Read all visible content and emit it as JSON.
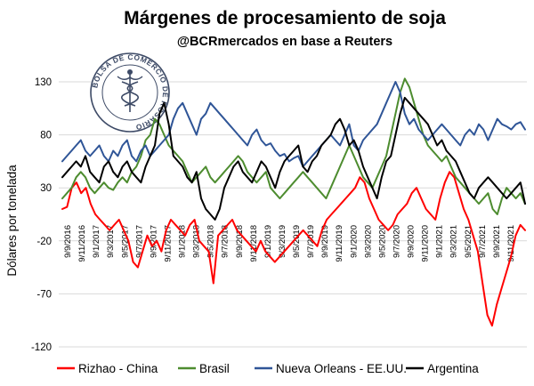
{
  "chart_data": {
    "type": "line",
    "title": "Márgenes de procesamiento de soja",
    "subtitle": "@BCRmercados en base a Reuters",
    "xlabel": "",
    "ylabel": "Dólares por tonelada",
    "ylim": [
      -120,
      130
    ],
    "yticks": [
      130,
      80,
      30,
      -20,
      -70,
      -120
    ],
    "xticks": [
      "9/9/2016",
      "9/11/2016",
      "9/1/2017",
      "9/3/2017",
      "9/5/2017",
      "9/7/2017",
      "9/9/2017",
      "9/11/2017",
      "9/1/2018",
      "9/3/2018",
      "9/5/2018",
      "9/7/2018",
      "9/9/2018",
      "9/11/2018",
      "9/1/2019",
      "9/3/2019",
      "9/5/2019",
      "9/7/2019",
      "9/9/2019",
      "9/11/2019",
      "9/1/2020",
      "9/3/2020",
      "9/5/2020",
      "9/7/2020",
      "9/9/2020",
      "9/11/2020",
      "9/1/2021",
      "9/3/2021",
      "9/5/2021",
      "9/7/2021",
      "9/9/2021",
      "9/11/2021"
    ],
    "grid": true,
    "legend": "bottom",
    "logo_text": "BOLSA DE COMERCIO DE ROSARIO",
    "series": [
      {
        "name": "Rizhao - China",
        "color": "#ff0000",
        "values": [
          10,
          12,
          30,
          35,
          25,
          30,
          15,
          5,
          0,
          -5,
          -10,
          -5,
          0,
          -10,
          -20,
          -40,
          -45,
          -30,
          -15,
          -25,
          -20,
          -30,
          -10,
          0,
          -5,
          -10,
          -15,
          -5,
          0,
          -20,
          -25,
          -30,
          -60,
          -15,
          -10,
          -5,
          0,
          -10,
          -15,
          -20,
          -25,
          -30,
          -20,
          -30,
          -35,
          -40,
          -35,
          -30,
          -25,
          -20,
          -15,
          -10,
          -15,
          -20,
          -25,
          -10,
          0,
          5,
          10,
          15,
          20,
          25,
          30,
          40,
          35,
          20,
          10,
          0,
          -5,
          -10,
          -5,
          5,
          10,
          15,
          25,
          30,
          20,
          10,
          5,
          0,
          20,
          35,
          45,
          40,
          25,
          10,
          0,
          -15,
          -30,
          -60,
          -90,
          -100,
          -80,
          -65,
          -50,
          -35,
          -15,
          -5,
          -10
        ]
      },
      {
        "name": "Brasil",
        "color": "#4d8c2f",
        "values": [
          20,
          25,
          30,
          40,
          45,
          40,
          30,
          25,
          30,
          35,
          30,
          28,
          35,
          40,
          35,
          45,
          50,
          60,
          75,
          80,
          95,
          90,
          80,
          70,
          65,
          60,
          55,
          45,
          35,
          40,
          45,
          50,
          40,
          35,
          40,
          45,
          50,
          55,
          60,
          55,
          45,
          40,
          35,
          40,
          45,
          30,
          25,
          20,
          25,
          30,
          35,
          40,
          45,
          40,
          35,
          30,
          25,
          20,
          30,
          40,
          50,
          60,
          70,
          60,
          50,
          40,
          35,
          30,
          40,
          50,
          60,
          80,
          100,
          120,
          133,
          125,
          110,
          95,
          80,
          70,
          65,
          60,
          55,
          60,
          50,
          40,
          35,
          30,
          25,
          20,
          15,
          20,
          25,
          10,
          5,
          20,
          30,
          25,
          20,
          25,
          15
        ]
      },
      {
        "name": "Nueva Orleans - EE.UU.",
        "color": "#2f5597",
        "values": [
          55,
          60,
          65,
          70,
          75,
          65,
          60,
          65,
          70,
          60,
          55,
          65,
          60,
          70,
          75,
          60,
          55,
          65,
          70,
          60,
          65,
          70,
          75,
          80,
          95,
          105,
          110,
          100,
          90,
          80,
          95,
          100,
          110,
          105,
          100,
          95,
          90,
          85,
          80,
          75,
          70,
          80,
          85,
          75,
          70,
          72,
          65,
          60,
          62,
          55,
          58,
          60,
          50,
          55,
          60,
          65,
          70,
          75,
          80,
          75,
          70,
          80,
          90,
          70,
          65,
          75,
          80,
          85,
          90,
          100,
          110,
          120,
          130,
          120,
          100,
          90,
          95,
          85,
          80,
          75,
          80,
          85,
          90,
          85,
          80,
          75,
          70,
          80,
          85,
          80,
          90,
          85,
          75,
          85,
          95,
          90,
          88,
          85,
          90,
          92,
          85
        ]
      },
      {
        "name": "Argentina",
        "color": "#000000",
        "values": [
          40,
          45,
          50,
          55,
          50,
          60,
          45,
          40,
          35,
          50,
          55,
          45,
          40,
          50,
          55,
          45,
          40,
          35,
          50,
          60,
          70,
          100,
          110,
          90,
          60,
          55,
          50,
          40,
          35,
          45,
          20,
          10,
          5,
          0,
          10,
          30,
          40,
          50,
          55,
          45,
          40,
          35,
          45,
          55,
          50,
          40,
          30,
          45,
          55,
          60,
          65,
          70,
          50,
          45,
          55,
          60,
          70,
          75,
          80,
          90,
          95,
          85,
          70,
          75,
          65,
          50,
          40,
          30,
          20,
          40,
          55,
          60,
          80,
          100,
          115,
          110,
          105,
          100,
          95,
          90,
          80,
          70,
          75,
          65,
          60,
          55,
          45,
          35,
          25,
          20,
          30,
          35,
          40,
          35,
          30,
          25,
          20,
          25,
          30,
          35,
          15
        ]
      }
    ]
  }
}
